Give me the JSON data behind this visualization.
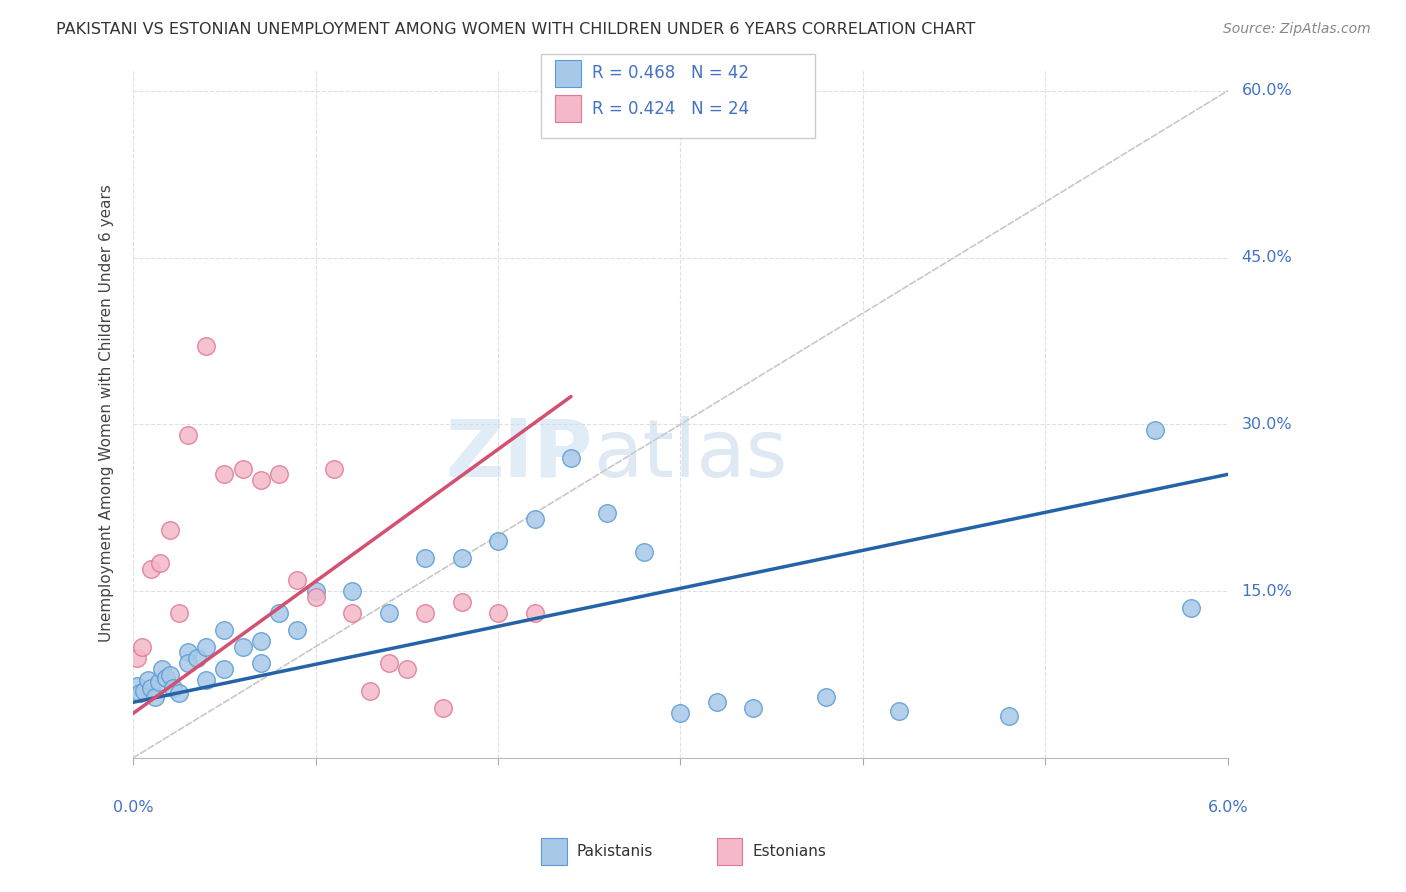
{
  "title": "PAKISTANI VS ESTONIAN UNEMPLOYMENT AMONG WOMEN WITH CHILDREN UNDER 6 YEARS CORRELATION CHART",
  "source": "Source: ZipAtlas.com",
  "ylabel": "Unemployment Among Women with Children Under 6 years",
  "xlim": [
    0.0,
    0.06
  ],
  "ylim": [
    0.0,
    0.62
  ],
  "blue_color": "#a8c8e8",
  "blue_edge_color": "#5b9bd5",
  "pink_color": "#f4b8c8",
  "pink_edge_color": "#e07898",
  "blue_line_color": "#2563a8",
  "pink_line_color": "#d45070",
  "diag_color": "#c8c8c8",
  "title_color": "#333333",
  "source_color": "#888888",
  "label_color": "#4472c4",
  "watermark_color": "#d8eaf8",
  "blue_trend_x0": 0.0,
  "blue_trend_y0": 0.05,
  "blue_trend_x1": 0.06,
  "blue_trend_y1": 0.255,
  "pink_trend_x0": 0.0,
  "pink_trend_y0": 0.04,
  "pink_trend_x1": 0.024,
  "pink_trend_y1": 0.325,
  "pakistani_x": [
    0.0002,
    0.0004,
    0.0006,
    0.0008,
    0.001,
    0.0012,
    0.0014,
    0.0016,
    0.0018,
    0.002,
    0.0022,
    0.0025,
    0.003,
    0.003,
    0.0035,
    0.004,
    0.004,
    0.005,
    0.005,
    0.006,
    0.007,
    0.007,
    0.008,
    0.009,
    0.01,
    0.012,
    0.014,
    0.016,
    0.018,
    0.02,
    0.022,
    0.024,
    0.026,
    0.028,
    0.03,
    0.032,
    0.034,
    0.038,
    0.042,
    0.048,
    0.056,
    0.058
  ],
  "pakistani_y": [
    0.065,
    0.058,
    0.06,
    0.07,
    0.063,
    0.055,
    0.068,
    0.08,
    0.072,
    0.075,
    0.063,
    0.058,
    0.095,
    0.085,
    0.09,
    0.1,
    0.07,
    0.115,
    0.08,
    0.1,
    0.105,
    0.085,
    0.13,
    0.115,
    0.15,
    0.15,
    0.13,
    0.18,
    0.18,
    0.195,
    0.215,
    0.27,
    0.22,
    0.185,
    0.04,
    0.05,
    0.045,
    0.055,
    0.042,
    0.038,
    0.295,
    0.135
  ],
  "estonian_x": [
    0.0002,
    0.0005,
    0.001,
    0.0015,
    0.002,
    0.0025,
    0.003,
    0.004,
    0.005,
    0.006,
    0.007,
    0.008,
    0.009,
    0.01,
    0.011,
    0.012,
    0.013,
    0.014,
    0.015,
    0.016,
    0.017,
    0.018,
    0.02,
    0.022
  ],
  "estonian_y": [
    0.09,
    0.1,
    0.17,
    0.175,
    0.205,
    0.13,
    0.29,
    0.37,
    0.255,
    0.26,
    0.25,
    0.255,
    0.16,
    0.145,
    0.26,
    0.13,
    0.06,
    0.085,
    0.08,
    0.13,
    0.045,
    0.14,
    0.13,
    0.13
  ]
}
